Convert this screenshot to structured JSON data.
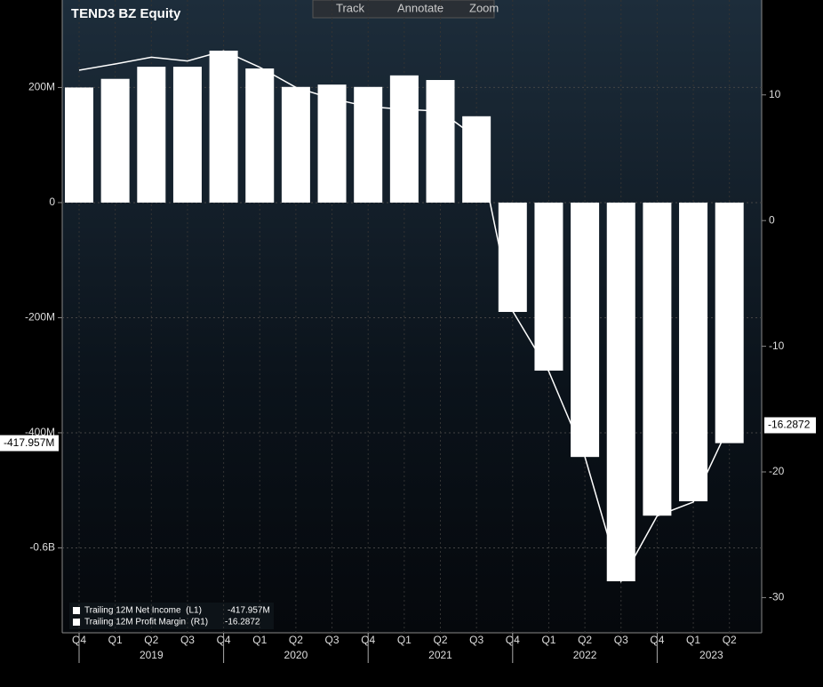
{
  "toolbar": {
    "buttons": [
      "Track",
      "Annotate",
      "Zoom"
    ]
  },
  "chart_data": {
    "type": "bar-line",
    "title": "TEND3 BZ Equity",
    "categories": [
      "Q4",
      "Q1",
      "Q2",
      "Q3",
      "Q4",
      "Q1",
      "Q2",
      "Q3",
      "Q4",
      "Q1",
      "Q2",
      "Q3",
      "Q4",
      "Q1",
      "Q2",
      "Q3",
      "Q4",
      "Q1",
      "Q2"
    ],
    "years": [
      "2019",
      "2020",
      "2021",
      "2022",
      "2023"
    ],
    "series": [
      {
        "name": "Trailing 12M Net Income  (L1)",
        "type": "bar",
        "color": "#ffffff",
        "values": [
          200,
          215,
          236,
          236,
          264,
          233,
          201,
          205,
          201,
          221,
          213,
          150,
          -190,
          -292,
          -442,
          -658,
          -544,
          -519,
          -417.957
        ],
        "value_labels": [
          null,
          null,
          null,
          null,
          null,
          null,
          null,
          null,
          null,
          null,
          null,
          null,
          null,
          null,
          null,
          null,
          null,
          null,
          "-417.957M"
        ]
      },
      {
        "name": "Trailing 12M Profit Margin  (R1)",
        "type": "line",
        "axis": "y2",
        "color": "#ffffff",
        "values": [
          11.96,
          12.46,
          13.0,
          12.7,
          13.5,
          12.2,
          10.6,
          9.7,
          9.06,
          8.85,
          8.7,
          6.6,
          -7.2,
          -12.0,
          -18.8,
          -28.7,
          -23.5,
          -22.4,
          -16.2872
        ],
        "value_labels": [
          null,
          null,
          null,
          null,
          null,
          null,
          null,
          null,
          null,
          null,
          null,
          null,
          null,
          null,
          null,
          null,
          null,
          null,
          "-16.2872"
        ]
      }
    ],
    "ylim": [
      -747.5,
      352
    ],
    "yticks": [
      {
        "value": 200,
        "label": "200M"
      },
      0,
      {
        "value": -200,
        "label": "-200M"
      },
      {
        "value": -400,
        "label": "-400M"
      },
      {
        "value": -600,
        "label": "-0.6B"
      }
    ],
    "y2lim": [
      -32.8,
      17.55
    ],
    "y2ticks": [
      10,
      0,
      -10,
      -20,
      -30
    ],
    "grid": true
  }
}
